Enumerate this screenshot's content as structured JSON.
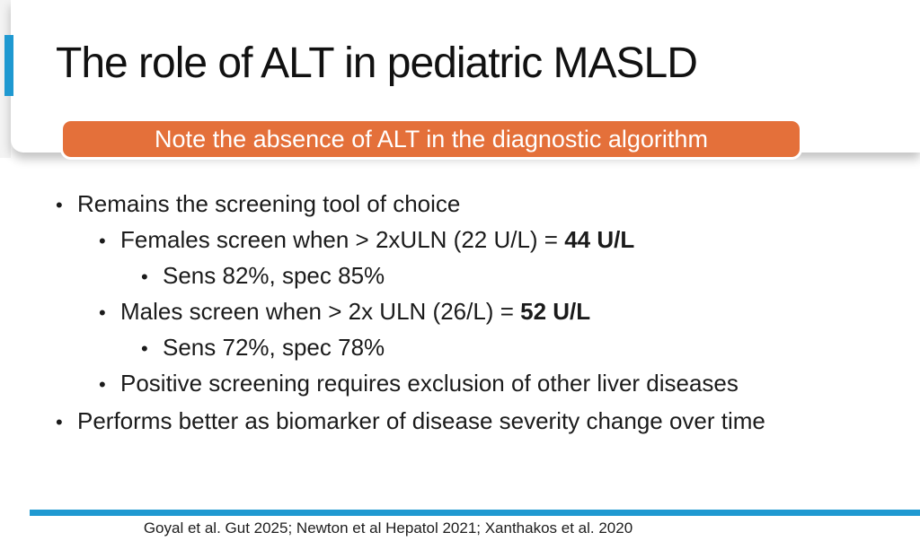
{
  "slide": {
    "title": "The role of ALT in pediatric MASLD",
    "banner": "Note the absence of ALT in the diagnostic algorithm",
    "bullet_char": "•",
    "bullets": [
      {
        "level": 1,
        "text": "Remains the screening tool of choice",
        "bold": ""
      },
      {
        "level": 2,
        "text": "Females screen when > 2xULN (22 U/L) = ",
        "bold": "44 U/L"
      },
      {
        "level": 3,
        "text": "Sens 82%, spec 85%",
        "bold": ""
      },
      {
        "level": 2,
        "text": "Males screen when > 2x ULN (26/L) = ",
        "bold": "52 U/L"
      },
      {
        "level": 3,
        "text": "Sens 72%, spec 78%",
        "bold": ""
      },
      {
        "level": 2,
        "text": "Positive screening requires exclusion of other liver diseases",
        "bold": ""
      },
      {
        "level": 1,
        "text": "Performs better as biomarker of disease severity change over time",
        "bold": ""
      }
    ],
    "citation": "Goyal et al. Gut 2025; Newton et al Hepatol 2021; Xanthakos et al. 2020",
    "colors": {
      "accent_blue": "#1f99d1",
      "accent_orange": "#e4703a"
    }
  }
}
